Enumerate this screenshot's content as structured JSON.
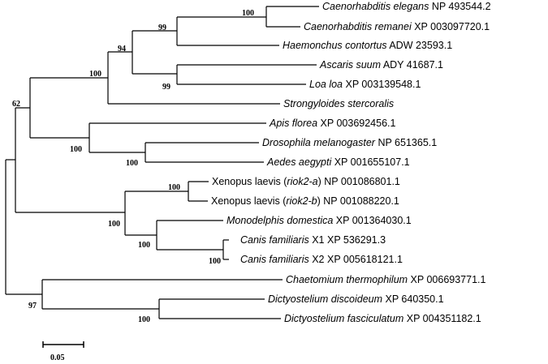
{
  "tree": {
    "taxa": [
      {
        "species": "Caenorhabditis elegans",
        "mid": "",
        "accession": "NP 493544.2"
      },
      {
        "species": "Caenorhabditis remanei",
        "mid": "",
        "accession": "XP 003097720.1"
      },
      {
        "species": "Haemonchus contortus",
        "mid": "",
        "accession": "ADW 23593.1"
      },
      {
        "species": "Ascaris suum",
        "mid": "",
        "accession": "ADY 41687.1"
      },
      {
        "species": "Loa loa",
        "mid": "",
        "accession": "XP 003139548.1"
      },
      {
        "species": "Strongyloides stercoralis",
        "mid": "",
        "accession": ""
      },
      {
        "species": "Apis florea",
        "mid": "",
        "accession": "XP 003692456.1"
      },
      {
        "species": "Drosophila melanogaster",
        "mid": "",
        "accession": "NP 651365.1"
      },
      {
        "species": "Aedes aegypti",
        "mid": "",
        "accession": "XP 001655107.1"
      },
      {
        "species": "Xenopus laevis (",
        "mid": "riok2-a",
        "accession": ") NP 001086801.1",
        "plain_prefix": true
      },
      {
        "species": "Xenopus laevis (",
        "mid": "riok2-b",
        "accession": ") NP 001088220.1",
        "plain_prefix": true
      },
      {
        "species": "Monodelphis domestica",
        "mid": "",
        "accession": "XP 001364030.1"
      },
      {
        "species": "Canis familiaris",
        "mid": "",
        "accession": "X1 XP 536291.3"
      },
      {
        "species": "Canis familiaris",
        "mid": "",
        "accession": "X2 XP 005618121.1"
      },
      {
        "species": "Chaetomium thermophilum",
        "mid": "",
        "accession": "XP 006693771.1"
      },
      {
        "species": "Dictyostelium discoideum",
        "mid": "",
        "accession": "XP 640350.1"
      },
      {
        "species": "Dictyostelium fasciculatum",
        "mid": "",
        "accession": "XP 004351182.1"
      }
    ],
    "bootstrap": [
      "100",
      "99",
      "94",
      "99",
      "100",
      "62",
      "100",
      "100",
      "100",
      "100",
      "100",
      "100",
      "97",
      "100"
    ],
    "scale_label": "0.05"
  }
}
